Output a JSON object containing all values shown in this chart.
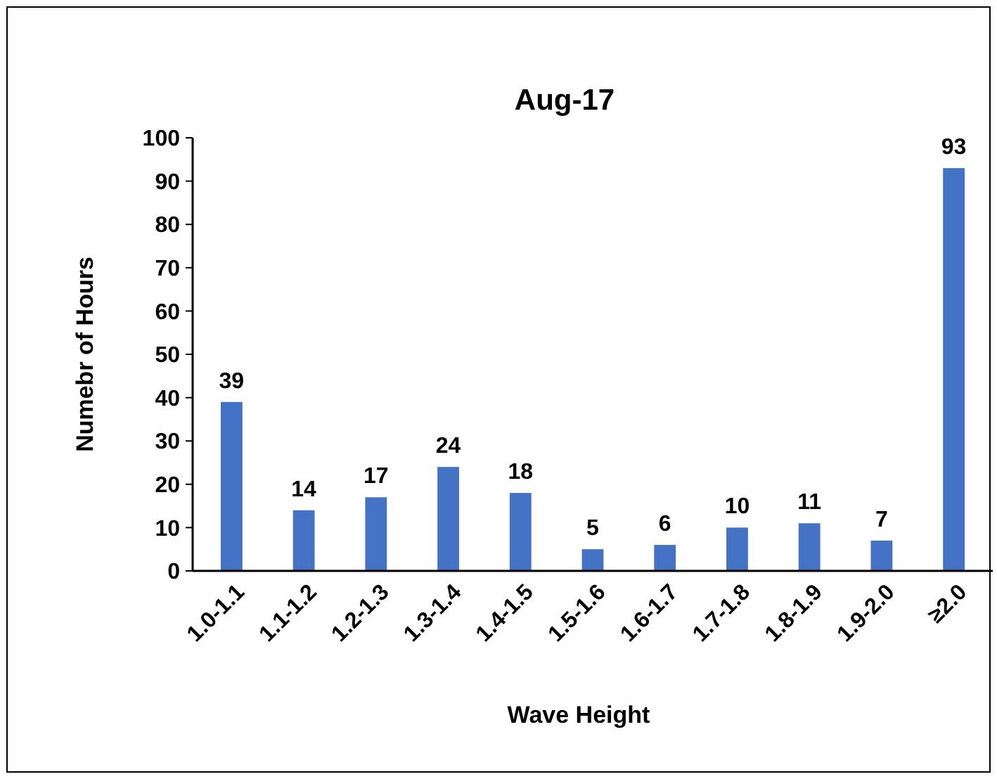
{
  "chart_data": {
    "type": "bar",
    "title": "Aug-17",
    "xlabel": "Wave Height",
    "ylabel": "Numebr of Hours",
    "categories": [
      "1.0-1.1",
      "1.1-1.2",
      "1.2-1.3",
      "1.3-1.4",
      "1.4-1.5",
      "1.5-1.6",
      "1.6-1.7",
      "1.7-1.8",
      "1.8-1.9",
      "1.9-2.0",
      "≥2.0"
    ],
    "values": [
      39,
      14,
      17,
      24,
      18,
      5,
      6,
      10,
      11,
      7,
      93
    ],
    "color": "#4472c4",
    "ylim": [
      0,
      100
    ],
    "yticks": [
      0,
      10,
      20,
      30,
      40,
      50,
      60,
      70,
      80,
      90,
      100
    ],
    "data_labels": true
  }
}
